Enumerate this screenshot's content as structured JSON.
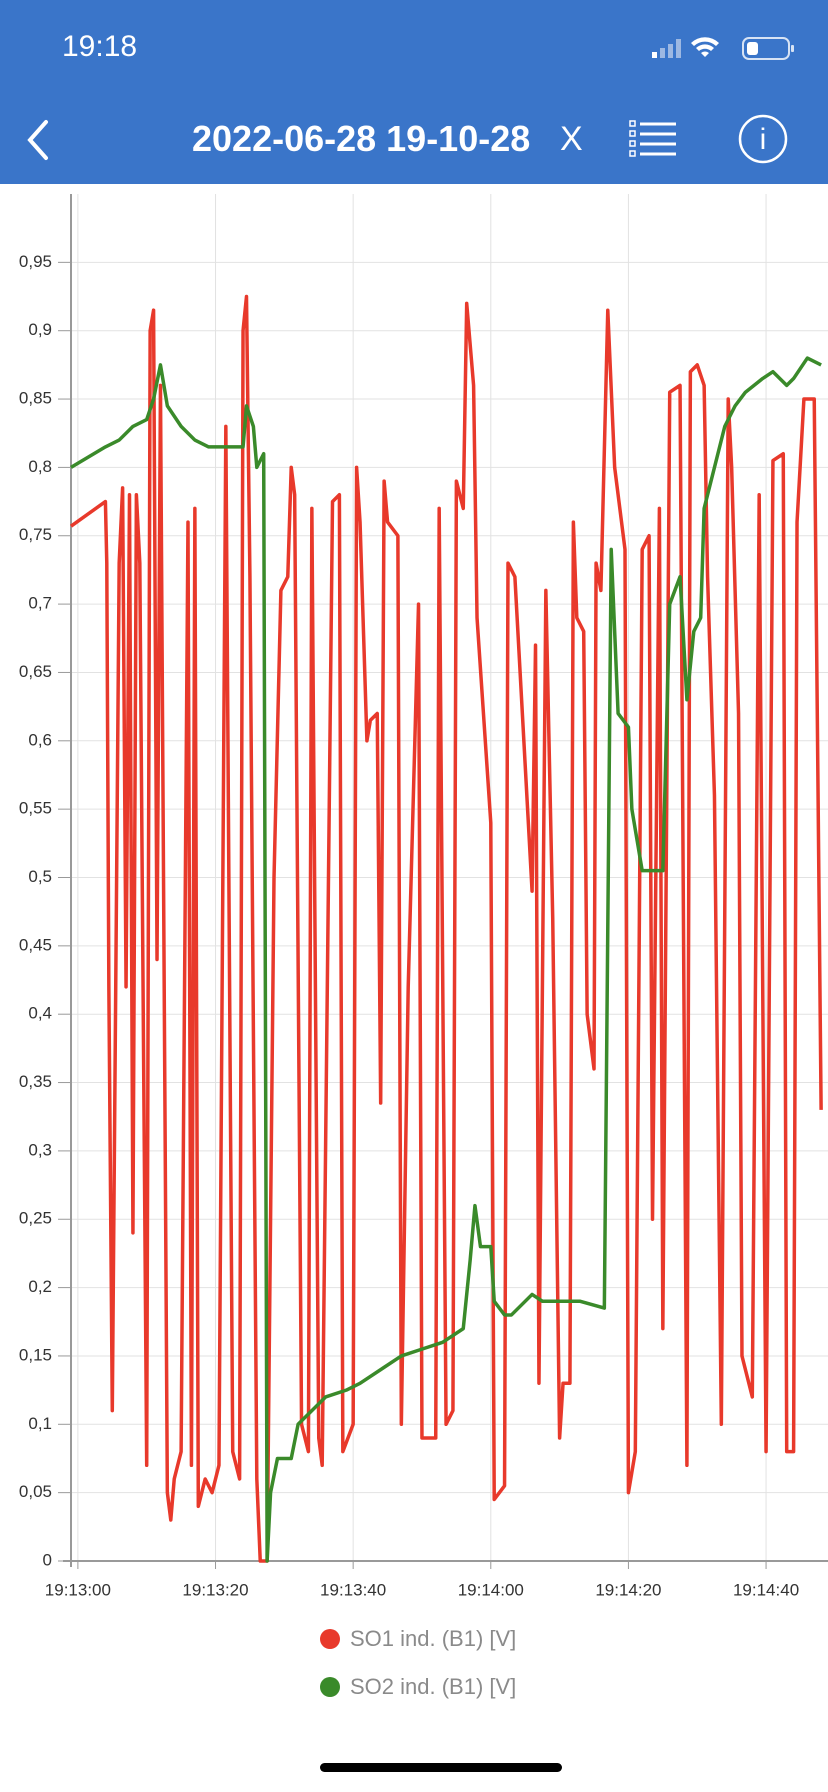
{
  "status_bar": {
    "time": "19:18"
  },
  "header": {
    "title": "2022-06-28 19-10-28",
    "close": "X",
    "info": "i"
  },
  "chart_data": {
    "type": "line",
    "xlim": [
      68579,
      68689
    ],
    "ylim": [
      0,
      1
    ],
    "xticks": [
      {
        "value": 68580,
        "label": "19:13:00"
      },
      {
        "value": 68600,
        "label": "19:13:20"
      },
      {
        "value": 68620,
        "label": "19:13:40"
      },
      {
        "value": 68640,
        "label": "19:14:00"
      },
      {
        "value": 68660,
        "label": "19:14:20"
      },
      {
        "value": 68680,
        "label": "19:14:40"
      }
    ],
    "yticks": [
      0,
      {
        "value": 0.05,
        "label": "0,05"
      },
      {
        "value": 0.1,
        "label": "0,1"
      },
      {
        "value": 0.15,
        "label": "0,15"
      },
      {
        "value": 0.2,
        "label": "0,2"
      },
      {
        "value": 0.25,
        "label": "0,25"
      },
      {
        "value": 0.3,
        "label": "0,3"
      },
      {
        "value": 0.35,
        "label": "0,35"
      },
      {
        "value": 0.4,
        "label": "0,4"
      },
      {
        "value": 0.45,
        "label": "0,45"
      },
      {
        "value": 0.5,
        "label": "0,5"
      },
      {
        "value": 0.55,
        "label": "0,55"
      },
      {
        "value": 0.6,
        "label": "0,6"
      },
      {
        "value": 0.65,
        "label": "0,65"
      },
      {
        "value": 0.7,
        "label": "0,7"
      },
      {
        "value": 0.75,
        "label": "0,75"
      },
      {
        "value": 0.8,
        "label": "0,8"
      },
      {
        "value": 0.85,
        "label": "0,85"
      },
      {
        "value": 0.9,
        "label": "0,9"
      },
      {
        "value": 0.95,
        "label": "0,95"
      }
    ],
    "grid": true,
    "series": [
      {
        "name": "SO1 ind. (B1) [V]",
        "color": "#e8392b",
        "x": [
          68579,
          68584,
          68584.2,
          68584.5,
          68585,
          68586,
          68586.5,
          68587,
          68587.5,
          68588,
          68588.5,
          68589,
          68590,
          68590.5,
          68591,
          68591.5,
          68592,
          68593,
          68593.5,
          68594,
          68595,
          68596,
          68596.5,
          68597,
          68597.5,
          68598.5,
          68599.5,
          68600.5,
          68601.5,
          68602.5,
          68603.5,
          68604,
          68604.5,
          68605,
          68606,
          68606.5,
          68607.5,
          68608.5,
          68609.5,
          68610.5,
          68611,
          68611.5,
          68612.5,
          68613.5,
          68614,
          68615,
          68615.5,
          68617,
          68618,
          68618.5,
          68620,
          68620.5,
          68621,
          68622,
          68622.5,
          68623.5,
          68624,
          68624.5,
          68625,
          68626.5,
          68627,
          68628,
          68629.5,
          68630,
          68632,
          68632.5,
          68633.5,
          68634.5,
          68635,
          68636,
          68636.5,
          68637.5,
          68638,
          68640,
          68640.5,
          68642,
          68642.5,
          68643.5,
          68646,
          68646.5,
          68647,
          68648,
          68649,
          68650,
          68650.5,
          68651.5,
          68652,
          68652.5,
          68653.5,
          68654,
          68655,
          68655.3,
          68656,
          68657,
          68658,
          68659.5,
          68660,
          68661,
          68662,
          68663,
          68663.5,
          68664.5,
          68665,
          68666,
          68667.5,
          68668.5,
          68669,
          68670,
          68671,
          68671.5,
          68672.5,
          68673.5,
          68674.5,
          68675,
          68676,
          68676.5,
          68678,
          68679,
          68680,
          68681,
          68682.5,
          68683,
          68684,
          68684.5,
          68685.5,
          68687,
          68688
        ],
        "values": [
          0.757,
          0.775,
          0.73,
          0.42,
          0.11,
          0.73,
          0.785,
          0.42,
          0.78,
          0.24,
          0.78,
          0.73,
          0.07,
          0.9,
          0.915,
          0.44,
          0.86,
          0.05,
          0.03,
          0.06,
          0.08,
          0.76,
          0.07,
          0.77,
          0.04,
          0.06,
          0.05,
          0.07,
          0.83,
          0.08,
          0.06,
          0.9,
          0.925,
          0.72,
          0.06,
          0,
          0,
          0.5,
          0.71,
          0.72,
          0.8,
          0.78,
          0.1,
          0.08,
          0.77,
          0.09,
          0.07,
          0.775,
          0.78,
          0.08,
          0.1,
          0.8,
          0.76,
          0.6,
          0.615,
          0.62,
          0.335,
          0.79,
          0.76,
          0.75,
          0.1,
          0.42,
          0.7,
          0.09,
          0.09,
          0.77,
          0.1,
          0.11,
          0.79,
          0.77,
          0.92,
          0.86,
          0.69,
          0.54,
          0.045,
          0.055,
          0.73,
          0.72,
          0.49,
          0.67,
          0.13,
          0.71,
          0.47,
          0.09,
          0.13,
          0.13,
          0.76,
          0.69,
          0.68,
          0.4,
          0.36,
          0.73,
          0.71,
          0.915,
          0.8,
          0.74,
          0.05,
          0.08,
          0.74,
          0.75,
          0.25,
          0.77,
          0.17,
          0.855,
          0.86,
          0.07,
          0.87,
          0.875,
          0.86,
          0.72,
          0.56,
          0.1,
          0.85,
          0.8,
          0.62,
          0.15,
          0.12,
          0.78,
          0.08,
          0.805,
          0.81,
          0.08,
          0.08,
          0.76,
          0.85,
          0.85,
          0.33
        ]
      },
      {
        "name": "SO2 ind. (B1) [V]",
        "color": "#3a8a2a",
        "x": [
          68579,
          68584,
          68586,
          68588,
          68590,
          68591,
          68592,
          68593,
          68595,
          68597,
          68599,
          68604,
          68604.5,
          68605.5,
          68606,
          68607,
          68607.5,
          68608,
          68609,
          68611,
          68612,
          68614,
          68616,
          68619,
          68621,
          68624,
          68627,
          68630,
          68633,
          68636,
          68637,
          68637.7,
          68638.5,
          68640,
          68640.5,
          68642,
          68643,
          68646,
          68647.5,
          68650,
          68653,
          68656.5,
          68657.5,
          68658.5,
          68660,
          68660.5,
          68662,
          68665,
          68666,
          68667.5,
          68668.5,
          68669.5,
          68670.5,
          68671,
          68672.5,
          68674,
          68675.5,
          68677,
          68679.5,
          68681,
          68683,
          68684,
          68686,
          68688
        ],
        "values": [
          0.8,
          0.815,
          0.82,
          0.83,
          0.835,
          0.85,
          0.875,
          0.845,
          0.83,
          0.82,
          0.815,
          0.815,
          0.845,
          0.83,
          0.8,
          0.81,
          0,
          0.05,
          0.075,
          0.075,
          0.1,
          0.11,
          0.12,
          0.125,
          0.13,
          0.14,
          0.15,
          0.155,
          0.16,
          0.17,
          0.22,
          0.26,
          0.23,
          0.23,
          0.19,
          0.18,
          0.18,
          0.195,
          0.19,
          0.19,
          0.19,
          0.185,
          0.74,
          0.62,
          0.61,
          0.55,
          0.505,
          0.505,
          0.7,
          0.72,
          0.63,
          0.68,
          0.69,
          0.77,
          0.8,
          0.83,
          0.845,
          0.855,
          0.865,
          0.87,
          0.86,
          0.865,
          0.88,
          0.875
        ]
      }
    ]
  }
}
